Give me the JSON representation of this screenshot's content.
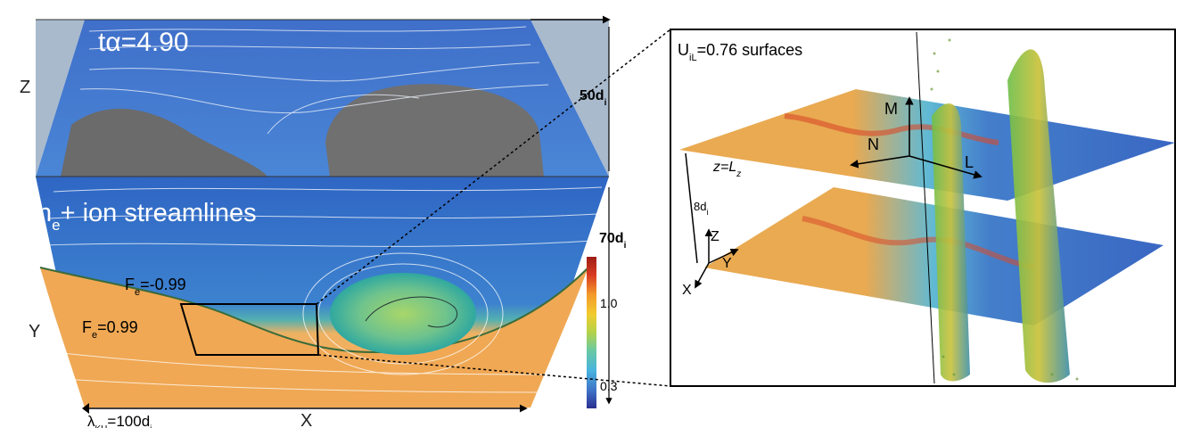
{
  "left_panel": {
    "time_label": "tα=4.90",
    "density_label": {
      "main": "n",
      "sub": "e",
      "rest": "+ ion streamlines"
    },
    "fe_neg": {
      "main": "F",
      "sub": "e",
      "rest": "=-0.99"
    },
    "fe_pos": {
      "main": "F",
      "sub": "e",
      "rest": "=0.99"
    },
    "axis_z": "Z",
    "axis_y": "Y",
    "axis_x": "X",
    "dim_50": {
      "main": "50d",
      "sub": "i"
    },
    "dim_70": {
      "main": "70d",
      "sub": "i"
    },
    "wavelength": {
      "main": "λ",
      "sub": "KH",
      "rest": "=100d",
      "sub2": "i"
    }
  },
  "colorbar": {
    "max_label": "1.0",
    "min_label": "0.3",
    "colors": [
      "#2b2f8f",
      "#3f74c8",
      "#48b4df",
      "#69c9a3",
      "#b3d24a",
      "#f1cc2f",
      "#f39a2a",
      "#d83a21",
      "#9e1d16"
    ]
  },
  "right_panel": {
    "title": {
      "main": "U",
      "sub": "iL",
      "rest": "=0.76 surfaces"
    },
    "plane_label": {
      "main": "z=L",
      "sub": "z"
    },
    "spacing": {
      "main": "8d",
      "sub": "i"
    },
    "axis_m": "M",
    "axis_n": "N",
    "axis_l": "L",
    "axis_z": "Z",
    "axis_y": "Y",
    "axis_x": "X"
  }
}
